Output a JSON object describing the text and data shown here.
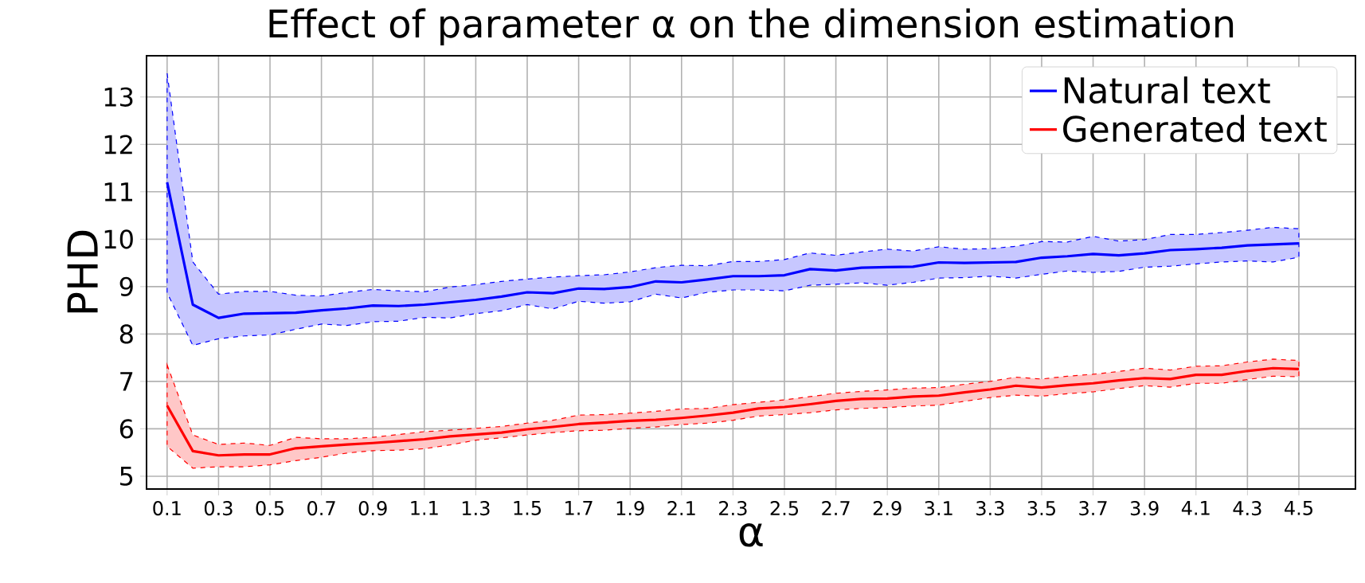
{
  "chart_data": {
    "type": "line",
    "title": "Effect of parameter α on the dimension estimation",
    "xlabel": "α",
    "ylabel": "PHD",
    "x": [
      0.1,
      0.2,
      0.3,
      0.4,
      0.5,
      0.6,
      0.7,
      0.8,
      0.9,
      1.0,
      1.1,
      1.2,
      1.3,
      1.4,
      1.5,
      1.6,
      1.7,
      1.8,
      1.9,
      2.0,
      2.1,
      2.2,
      2.3,
      2.4,
      2.5,
      2.6,
      2.7,
      2.8,
      2.9,
      3.0,
      3.1,
      3.2,
      3.3,
      3.4,
      3.5,
      3.6,
      3.7,
      3.8,
      3.9,
      4.0,
      4.1,
      4.2,
      4.3,
      4.4,
      4.5
    ],
    "series": [
      {
        "name": "Natural text",
        "color": "#0000ff",
        "values": [
          11.2,
          8.62,
          8.34,
          8.43,
          8.44,
          8.45,
          8.5,
          8.54,
          8.6,
          8.59,
          8.62,
          8.67,
          8.72,
          8.79,
          8.88,
          8.86,
          8.96,
          8.95,
          8.99,
          9.11,
          9.09,
          9.15,
          9.22,
          9.22,
          9.24,
          9.37,
          9.34,
          9.4,
          9.41,
          9.42,
          9.51,
          9.5,
          9.51,
          9.52,
          9.61,
          9.64,
          9.69,
          9.66,
          9.7,
          9.77,
          9.79,
          9.82,
          9.87,
          9.89,
          9.91
        ],
        "upper": [
          13.5,
          9.52,
          8.84,
          8.9,
          8.9,
          8.82,
          8.8,
          8.88,
          8.94,
          8.91,
          8.89,
          8.99,
          9.04,
          9.11,
          9.16,
          9.2,
          9.23,
          9.25,
          9.31,
          9.4,
          9.45,
          9.44,
          9.53,
          9.53,
          9.57,
          9.71,
          9.66,
          9.73,
          9.79,
          9.75,
          9.84,
          9.79,
          9.8,
          9.85,
          9.95,
          9.94,
          10.06,
          9.96,
          9.99,
          10.1,
          10.1,
          10.14,
          10.19,
          10.25,
          10.22
        ],
        "lower": [
          8.87,
          7.76,
          7.9,
          7.96,
          7.98,
          8.1,
          8.21,
          8.18,
          8.26,
          8.27,
          8.35,
          8.34,
          8.43,
          8.49,
          8.62,
          8.53,
          8.69,
          8.65,
          8.68,
          8.84,
          8.76,
          8.88,
          8.93,
          8.93,
          8.91,
          9.03,
          9.05,
          9.08,
          9.03,
          9.09,
          9.18,
          9.19,
          9.22,
          9.18,
          9.26,
          9.33,
          9.3,
          9.32,
          9.41,
          9.43,
          9.48,
          9.52,
          9.54,
          9.52,
          9.62
        ]
      },
      {
        "name": "Generated text",
        "color": "#ff0000",
        "values": [
          6.49,
          5.53,
          5.44,
          5.46,
          5.46,
          5.59,
          5.63,
          5.67,
          5.7,
          5.74,
          5.78,
          5.84,
          5.88,
          5.92,
          5.99,
          6.04,
          6.1,
          6.13,
          6.17,
          6.19,
          6.23,
          6.28,
          6.34,
          6.43,
          6.46,
          6.52,
          6.59,
          6.63,
          6.64,
          6.68,
          6.7,
          6.77,
          6.83,
          6.91,
          6.87,
          6.92,
          6.96,
          7.02,
          7.07,
          7.05,
          7.14,
          7.14,
          7.22,
          7.28,
          7.26
        ],
        "upper": [
          7.35,
          5.87,
          5.67,
          5.7,
          5.65,
          5.82,
          5.79,
          5.79,
          5.82,
          5.88,
          5.94,
          5.97,
          6.01,
          6.05,
          6.12,
          6.18,
          6.29,
          6.3,
          6.33,
          6.37,
          6.42,
          6.43,
          6.51,
          6.56,
          6.61,
          6.68,
          6.75,
          6.79,
          6.82,
          6.86,
          6.87,
          6.94,
          7.0,
          7.09,
          7.05,
          7.11,
          7.15,
          7.21,
          7.28,
          7.24,
          7.32,
          7.33,
          7.41,
          7.47,
          7.44
        ],
        "lower": [
          5.63,
          5.17,
          5.2,
          5.2,
          5.24,
          5.33,
          5.4,
          5.49,
          5.54,
          5.55,
          5.58,
          5.66,
          5.76,
          5.81,
          5.87,
          5.92,
          5.96,
          5.97,
          6.01,
          6.04,
          6.09,
          6.12,
          6.18,
          6.27,
          6.3,
          6.34,
          6.4,
          6.43,
          6.45,
          6.48,
          6.5,
          6.58,
          6.66,
          6.71,
          6.69,
          6.74,
          6.78,
          6.85,
          6.91,
          6.88,
          6.96,
          6.96,
          7.04,
          7.11,
          7.1
        ]
      }
    ],
    "xlim": [
      0.02,
      4.72
    ],
    "ylim": [
      4.73,
      13.87
    ],
    "xticks": [
      0.1,
      0.3,
      0.5,
      0.7,
      0.9,
      1.1,
      1.3,
      1.5,
      1.7,
      1.9,
      2.1,
      2.3,
      2.5,
      2.7,
      2.9,
      3.1,
      3.3,
      3.5,
      3.7,
      3.9,
      4.1,
      4.3,
      4.5
    ],
    "yticks": [
      5,
      6,
      7,
      8,
      9,
      10,
      11,
      12,
      13
    ],
    "grid": true,
    "legend": "top right"
  }
}
